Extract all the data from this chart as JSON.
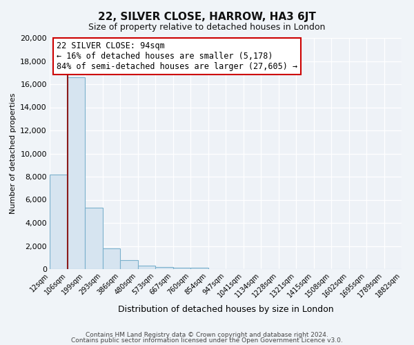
{
  "title": "22, SILVER CLOSE, HARROW, HA3 6JT",
  "subtitle": "Size of property relative to detached houses in London",
  "xlabel": "Distribution of detached houses by size in London",
  "ylabel": "Number of detached properties",
  "bar_color": "#d6e4f0",
  "bar_edge_color": "#7ab0cc",
  "background_color": "#f0f4f8",
  "plot_bg_color": "#eef2f7",
  "grid_color": "#ffffff",
  "bin_labels": [
    "12sqm",
    "106sqm",
    "199sqm",
    "293sqm",
    "386sqm",
    "480sqm",
    "573sqm",
    "667sqm",
    "760sqm",
    "854sqm",
    "947sqm",
    "1041sqm",
    "1134sqm",
    "1228sqm",
    "1321sqm",
    "1415sqm",
    "1508sqm",
    "1602sqm",
    "1695sqm",
    "1789sqm",
    "1882sqm"
  ],
  "bar_values": [
    8200,
    16600,
    5300,
    1800,
    800,
    300,
    150,
    100,
    100,
    0,
    0,
    0,
    0,
    0,
    0,
    0,
    0,
    0,
    0,
    0
  ],
  "ylim": [
    0,
    20000
  ],
  "yticks": [
    0,
    2000,
    4000,
    6000,
    8000,
    10000,
    12000,
    14000,
    16000,
    18000,
    20000
  ],
  "vline_x": 1,
  "vline_color": "#8b1a1a",
  "annotation_title": "22 SILVER CLOSE: 94sqm",
  "annotation_line1": "← 16% of detached houses are smaller (5,178)",
  "annotation_line2": "84% of semi-detached houses are larger (27,605) →",
  "annotation_box_color": "#ffffff",
  "annotation_box_edge": "#cc0000",
  "footer1": "Contains HM Land Registry data © Crown copyright and database right 2024.",
  "footer2": "Contains public sector information licensed under the Open Government Licence v3.0."
}
